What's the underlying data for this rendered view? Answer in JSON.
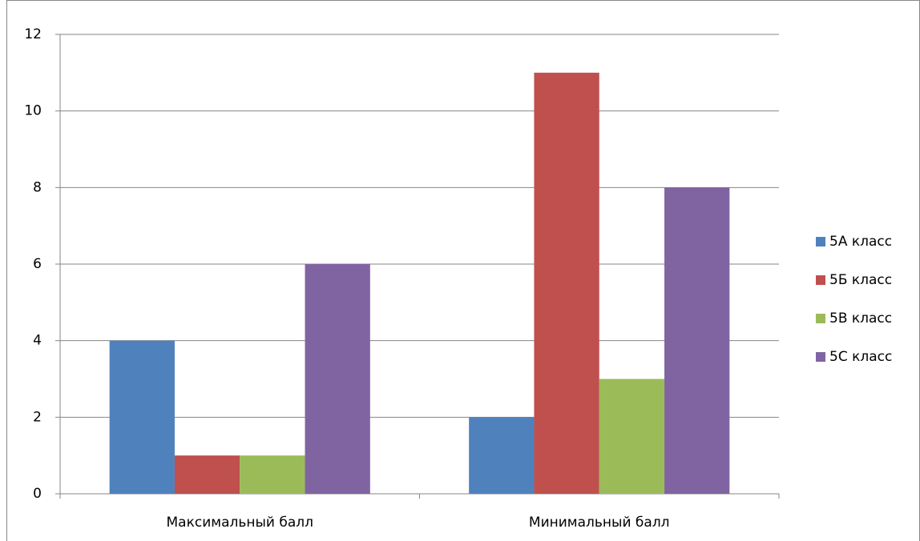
{
  "chart_data": {
    "type": "bar",
    "categories": [
      "Максимальный балл",
      "Минимальный балл"
    ],
    "series": [
      {
        "name": "5А класс",
        "color": "#4f81bd",
        "values": [
          4,
          2
        ]
      },
      {
        "name": "5Б класс",
        "color": "#c0504d",
        "values": [
          1,
          11
        ]
      },
      {
        "name": "5В класс",
        "color": "#9bbb59",
        "values": [
          1,
          3
        ]
      },
      {
        "name": "5С класс",
        "color": "#8064a2",
        "values": [
          6,
          8
        ]
      }
    ],
    "ylim": [
      0,
      12
    ],
    "yticks": [
      0,
      2,
      4,
      6,
      8,
      10,
      12
    ],
    "grid": true,
    "legend": "right"
  }
}
